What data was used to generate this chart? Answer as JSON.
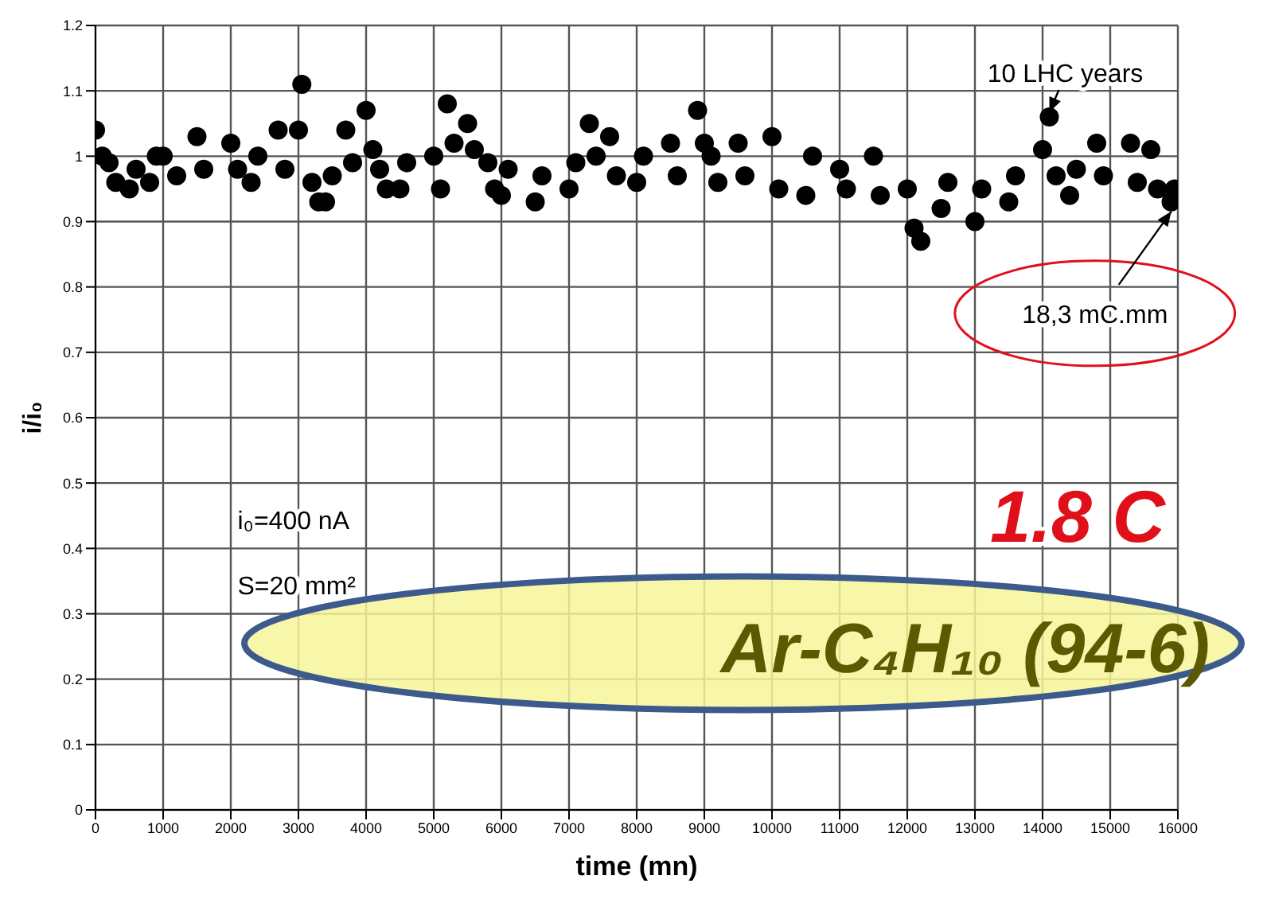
{
  "chart_data": {
    "type": "scatter",
    "xlabel": "time (mn)",
    "ylabel": "i/i₀",
    "x": [
      0,
      100,
      200,
      300,
      500,
      600,
      800,
      900,
      1000,
      1200,
      1500,
      1600,
      2000,
      2100,
      2300,
      2400,
      2700,
      2800,
      3000,
      3050,
      3200,
      3300,
      3400,
      3500,
      3700,
      3800,
      4000,
      4100,
      4200,
      4300,
      4500,
      4600,
      5000,
      5100,
      5200,
      5300,
      5500,
      5600,
      5800,
      5900,
      6000,
      6100,
      6500,
      6600,
      7000,
      7100,
      7300,
      7400,
      7600,
      7700,
      8000,
      8100,
      8500,
      8600,
      8900,
      9000,
      9100,
      9200,
      9500,
      9600,
      10000,
      10100,
      10500,
      10600,
      11000,
      11100,
      11500,
      11600,
      12000,
      12100,
      12200,
      12500,
      12600,
      13000,
      13100,
      13500,
      13600,
      14000,
      14100,
      14200,
      14400,
      14500,
      14800,
      14900,
      15300,
      15400,
      15600,
      15700,
      15900,
      15950
    ],
    "series": [
      {
        "color": "#000000",
        "values": [
          1.04,
          1.0,
          0.99,
          0.96,
          0.95,
          0.98,
          0.96,
          1.0,
          1.0,
          0.97,
          1.03,
          0.98,
          1.02,
          0.98,
          0.96,
          1.0,
          1.04,
          0.98,
          1.04,
          1.11,
          0.96,
          0.93,
          0.93,
          0.97,
          1.04,
          0.99,
          1.07,
          1.01,
          0.98,
          0.95,
          0.95,
          0.99,
          1.0,
          0.95,
          1.08,
          1.02,
          1.05,
          1.01,
          0.99,
          0.95,
          0.94,
          0.98,
          0.93,
          0.97,
          0.95,
          0.99,
          1.05,
          1.0,
          1.03,
          0.97,
          0.96,
          1.0,
          1.02,
          0.97,
          1.07,
          1.02,
          1.0,
          0.96,
          1.02,
          0.97,
          1.03,
          0.95,
          0.94,
          1.0,
          0.98,
          0.95,
          1.0,
          0.94,
          0.95,
          0.89,
          0.87,
          0.92,
          0.96,
          0.9,
          0.95,
          0.93,
          0.97,
          1.01,
          1.06,
          0.97,
          0.94,
          0.98,
          1.02,
          0.97,
          1.02,
          0.96,
          1.01,
          0.95,
          0.93,
          0.95
        ]
      }
    ],
    "xlim": [
      0,
      16000
    ],
    "xticks": [
      0,
      1000,
      2000,
      3000,
      4000,
      5000,
      6000,
      7000,
      8000,
      9000,
      10000,
      11000,
      12000,
      13000,
      14000,
      15000,
      16000
    ],
    "ylim": [
      0,
      1.2
    ],
    "yticks": [
      0,
      0.1,
      0.2,
      0.3,
      0.4,
      0.5,
      0.6,
      0.7,
      0.8,
      0.9,
      1,
      1.1,
      1.2
    ],
    "grid": true,
    "marker": "circle",
    "annotations": [
      {
        "text": "10  LHC years",
        "x": 14100,
        "y": 1.06
      },
      {
        "text": "18,3 mC.mm",
        "x": 15950,
        "y": 0.93
      },
      "i₀=400 nA",
      "S=20 mm²",
      "1.8 C",
      "Ar-C₄H₁₀ (94-6)"
    ]
  }
}
